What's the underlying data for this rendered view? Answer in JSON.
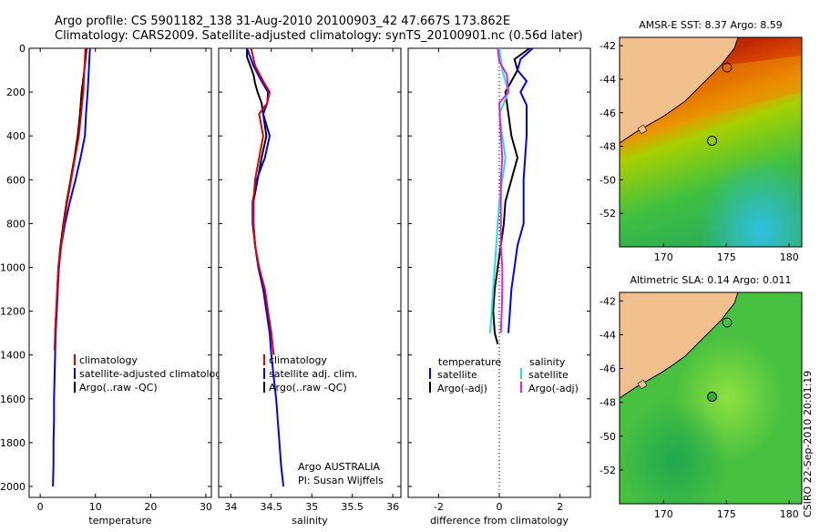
{
  "header": {
    "line1": "Argo profile: CS 5901182_138 31-Aug-2010 20100903_42 47.667S 173.862E",
    "line2": "Climatology: CARS2009. Satellite-adjusted climatology: synTS_20100901.nc (0.56d later)"
  },
  "credits": {
    "line1": "Argo AUSTRALIA",
    "line2": "PI: Susan Wijffels",
    "stamp": "CSIRO 22-Sep-2010 20:01:19"
  },
  "colors": {
    "climatology": "#e00000",
    "satellite": "#0000ee",
    "argo": "#000000",
    "sal_satellite": "#22e0e0",
    "sal_argo": "#e020e0"
  },
  "chart_data": [
    {
      "type": "line",
      "id": "temperature",
      "xlabel": "temperature",
      "ylabel": "",
      "xlim": [
        -2,
        31
      ],
      "ylim": [
        2050,
        0
      ],
      "xticks": [
        0,
        10,
        20,
        30
      ],
      "yticks": [
        0,
        200,
        400,
        600,
        800,
        1000,
        1200,
        1400,
        1600,
        1800,
        2000
      ],
      "legend_position": "lower-right",
      "series": [
        {
          "name": "climatology",
          "color_key": "climatology",
          "points": [
            [
              8.2,
              0
            ],
            [
              8.0,
              100
            ],
            [
              7.8,
              200
            ],
            [
              7.4,
              300
            ],
            [
              7.0,
              400
            ],
            [
              6.3,
              500
            ],
            [
              5.6,
              600
            ],
            [
              4.9,
              700
            ],
            [
              4.3,
              800
            ],
            [
              3.8,
              900
            ],
            [
              3.3,
              1000
            ],
            [
              3.1,
              1100
            ],
            [
              2.9,
              1200
            ],
            [
              2.7,
              1300
            ],
            [
              2.6,
              1380
            ]
          ]
        },
        {
          "name": "satellite-adjusted climatology",
          "legend_text": "satellite-adjusted climatology",
          "color_key": "satellite",
          "points": [
            [
              9.0,
              0
            ],
            [
              8.8,
              100
            ],
            [
              8.6,
              200
            ],
            [
              8.3,
              300
            ],
            [
              8.1,
              400
            ],
            [
              7.3,
              500
            ],
            [
              6.4,
              600
            ],
            [
              5.4,
              700
            ],
            [
              4.5,
              800
            ],
            [
              3.8,
              900
            ],
            [
              3.4,
              1000
            ],
            [
              3.2,
              1100
            ],
            [
              3.0,
              1200
            ],
            [
              2.8,
              1300
            ],
            [
              2.7,
              1400
            ],
            [
              2.6,
              1500
            ],
            [
              2.5,
              1600
            ],
            [
              2.5,
              1700
            ],
            [
              2.4,
              1800
            ],
            [
              2.4,
              1900
            ],
            [
              2.3,
              2000
            ]
          ]
        },
        {
          "name": "Argo(..raw -QC)",
          "color_key": "argo",
          "points": [
            [
              8.4,
              0
            ],
            [
              8.0,
              100
            ],
            [
              7.5,
              200
            ],
            [
              7.2,
              300
            ],
            [
              6.8,
              400
            ],
            [
              6.2,
              500
            ],
            [
              5.5,
              600
            ],
            [
              4.8,
              700
            ],
            [
              4.2,
              800
            ],
            [
              3.7,
              900
            ],
            [
              3.3,
              1000
            ],
            [
              3.1,
              1100
            ],
            [
              2.9,
              1200
            ],
            [
              2.7,
              1300
            ]
          ]
        }
      ]
    },
    {
      "type": "line",
      "id": "salinity",
      "xlabel": "salinity",
      "ylabel": "",
      "xlim": [
        33.85,
        36.1
      ],
      "ylim": [
        2050,
        0
      ],
      "xticks": [
        34,
        34.5,
        35,
        35.5,
        36
      ],
      "legend_position": "lower-right",
      "series": [
        {
          "name": "climatology",
          "color_key": "climatology",
          "points": [
            [
              34.25,
              0
            ],
            [
              34.3,
              80
            ],
            [
              34.4,
              150
            ],
            [
              34.48,
              200
            ],
            [
              34.45,
              250
            ],
            [
              34.35,
              300
            ],
            [
              34.4,
              400
            ],
            [
              34.35,
              500
            ],
            [
              34.3,
              600
            ],
            [
              34.28,
              700
            ],
            [
              34.28,
              800
            ],
            [
              34.3,
              900
            ],
            [
              34.35,
              1000
            ],
            [
              34.42,
              1100
            ],
            [
              34.46,
              1200
            ],
            [
              34.5,
              1300
            ],
            [
              34.53,
              1400
            ]
          ]
        },
        {
          "name": "satellite adj. clim.",
          "color_key": "satellite",
          "points": [
            [
              34.2,
              0
            ],
            [
              34.28,
              80
            ],
            [
              34.38,
              150
            ],
            [
              34.46,
              200
            ],
            [
              34.45,
              250
            ],
            [
              34.4,
              300
            ],
            [
              34.48,
              400
            ],
            [
              34.42,
              500
            ],
            [
              34.32,
              600
            ],
            [
              34.27,
              700
            ],
            [
              34.27,
              800
            ],
            [
              34.3,
              900
            ],
            [
              34.34,
              1000
            ],
            [
              34.4,
              1100
            ],
            [
              34.44,
              1200
            ],
            [
              34.48,
              1300
            ],
            [
              34.5,
              1400
            ],
            [
              34.53,
              1500
            ],
            [
              34.56,
              1600
            ],
            [
              34.58,
              1700
            ],
            [
              34.6,
              1800
            ],
            [
              34.62,
              1900
            ],
            [
              34.65,
              2000
            ]
          ]
        },
        {
          "name": "Argo(..raw -QC)",
          "color_key": "argo",
          "points": [
            [
              34.2,
              0
            ],
            [
              34.2,
              40
            ],
            [
              34.24,
              80
            ],
            [
              34.28,
              120
            ],
            [
              34.3,
              160
            ],
            [
              34.33,
              200
            ],
            [
              34.38,
              250
            ],
            [
              34.4,
              300
            ],
            [
              34.44,
              400
            ],
            [
              34.38,
              500
            ],
            [
              34.33,
              600
            ],
            [
              34.28,
              700
            ],
            [
              34.28,
              800
            ],
            [
              34.3,
              900
            ],
            [
              34.34,
              1000
            ],
            [
              34.4,
              1100
            ],
            [
              34.45,
              1200
            ],
            [
              34.5,
              1300
            ]
          ]
        }
      ]
    },
    {
      "type": "line",
      "id": "difference",
      "xlabel": "difference from climatology",
      "ylabel": "",
      "xlim": [
        -3.0,
        3.0
      ],
      "ylim": [
        2050,
        0
      ],
      "xticks": [
        -2,
        0,
        2
      ],
      "legend_position": "lower",
      "legend_headers": [
        "temperature",
        "salinity"
      ],
      "series": [
        {
          "name": "satellite",
          "group": "temperature",
          "color_key": "satellite",
          "points": [
            [
              1.1,
              0
            ],
            [
              0.7,
              50
            ],
            [
              0.6,
              100
            ],
            [
              0.9,
              150
            ],
            [
              0.7,
              200
            ],
            [
              0.9,
              260
            ],
            [
              0.9,
              400
            ],
            [
              0.8,
              600
            ],
            [
              0.8,
              800
            ],
            [
              0.6,
              900
            ],
            [
              0.5,
              1000
            ],
            [
              0.4,
              1100
            ],
            [
              0.35,
              1200
            ],
            [
              0.3,
              1300
            ]
          ]
        },
        {
          "name": "Argo(-adj)",
          "group": "temperature",
          "color_key": "argo",
          "points": [
            [
              1.0,
              0
            ],
            [
              0.5,
              50
            ],
            [
              0.6,
              100
            ],
            [
              0.4,
              150
            ],
            [
              0.2,
              200
            ],
            [
              0.3,
              300
            ],
            [
              0.4,
              400
            ],
            [
              0.6,
              500
            ],
            [
              0.4,
              600
            ],
            [
              0.2,
              700
            ],
            [
              0.15,
              800
            ],
            [
              0.05,
              900
            ],
            [
              -0.05,
              1000
            ],
            [
              -0.15,
              1100
            ],
            [
              -0.2,
              1200
            ],
            [
              -0.15,
              1300
            ],
            [
              -0.05,
              1350
            ]
          ]
        },
        {
          "name": "satellite",
          "group": "salinity",
          "color_key": "sal_satellite",
          "points": [
            [
              0.0,
              0
            ],
            [
              0.1,
              100
            ],
            [
              0.3,
              200
            ],
            [
              0.0,
              300
            ],
            [
              0.1,
              400
            ],
            [
              0.2,
              500
            ],
            [
              0.1,
              600
            ],
            [
              0.0,
              700
            ],
            [
              -0.05,
              800
            ],
            [
              -0.1,
              900
            ],
            [
              -0.15,
              1000
            ],
            [
              -0.2,
              1100
            ],
            [
              -0.25,
              1200
            ],
            [
              -0.3,
              1300
            ]
          ]
        },
        {
          "name": "Argo(-adj)",
          "group": "salinity",
          "color_key": "sal_argo",
          "points": [
            [
              -0.05,
              0
            ],
            [
              0.0,
              60
            ],
            [
              0.25,
              120
            ],
            [
              0.3,
              200
            ],
            [
              0.0,
              250
            ],
            [
              0.05,
              400
            ],
            [
              0.1,
              500
            ],
            [
              0.05,
              600
            ],
            [
              0.05,
              700
            ],
            [
              0.05,
              800
            ],
            [
              0.05,
              900
            ],
            [
              0.1,
              1000
            ],
            [
              0.1,
              1100
            ],
            [
              0.08,
              1200
            ],
            [
              0.05,
              1300
            ]
          ]
        }
      ]
    },
    {
      "type": "heatmap",
      "id": "sst-map",
      "title": "AMSR-E SST: 8.37  Argo: 8.59",
      "xlim": [
        166.5,
        181
      ],
      "ylim": [
        -54,
        -41.5
      ],
      "xticks": [
        170,
        175,
        180
      ],
      "yticks": [
        -42,
        -44,
        -46,
        -48,
        -50,
        -52
      ],
      "marker": {
        "lon": 173.862,
        "lat": -47.667
      }
    },
    {
      "type": "heatmap",
      "id": "sla-map",
      "title": "Altimetric SLA: 0.14  Argo: 0.011",
      "xlim": [
        166.5,
        181
      ],
      "ylim": [
        -54,
        -41.5
      ],
      "xticks": [
        170,
        175,
        180
      ],
      "yticks": [
        -42,
        -44,
        -46,
        -48,
        -50,
        -52
      ],
      "marker": {
        "lon": 173.862,
        "lat": -47.667
      }
    }
  ]
}
